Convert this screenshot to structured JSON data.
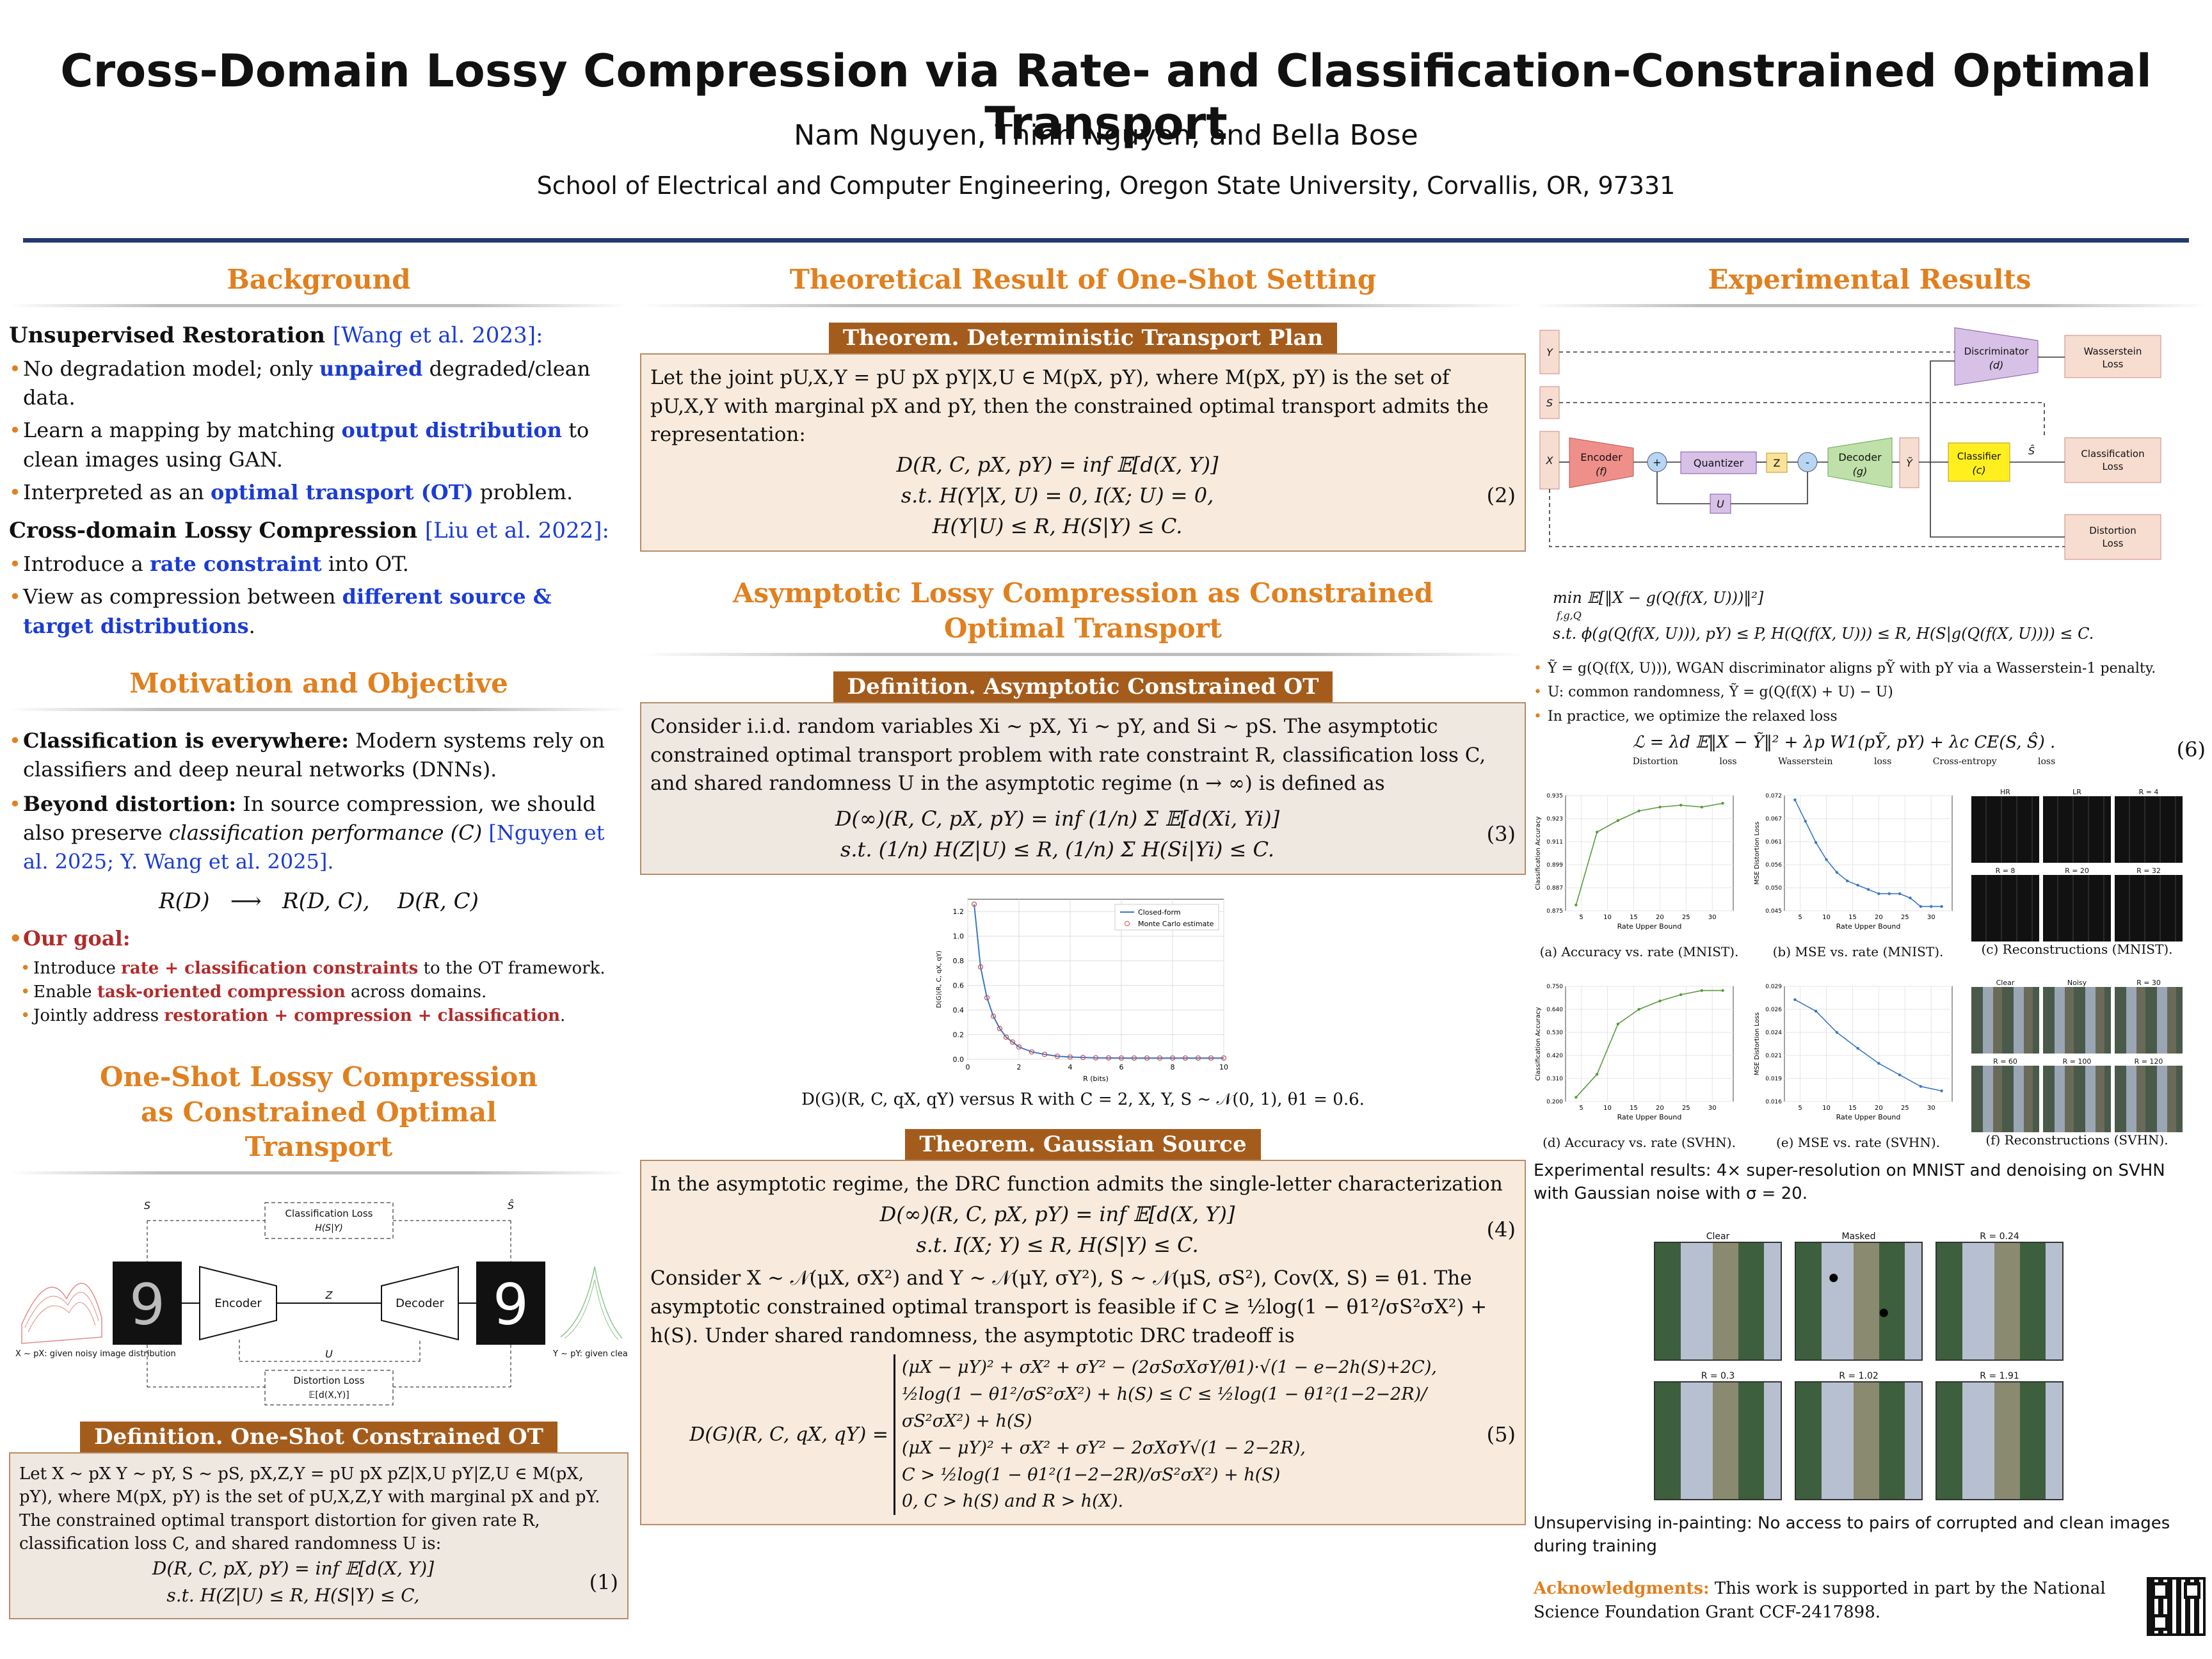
{
  "header": {
    "title": "Cross-Domain Lossy Compression via Rate- and Classification-Constrained Optimal Transport",
    "authors": "Nam Nguyen, Thinh Nguyen, and Bella Bose",
    "affiliation": "School of Electrical and Computer Engineering, Oregon State University, Corvallis, OR, 97331"
  },
  "background": {
    "title": "Background",
    "unsup_head": "Unsupervised Restoration",
    "unsup_cite": "[Wang et al. 2023]:",
    "b1_a": "No degradation model; only ",
    "b1_hl": "unpaired",
    "b1_b": " degraded/clean data.",
    "b2_a": "Learn a mapping by matching ",
    "b2_hl": "output distribution",
    "b2_b": " to clean images using GAN.",
    "b3_a": "Interpreted as an ",
    "b3_hl": "optimal transport (OT)",
    "b3_b": " problem.",
    "cross_head": "Cross-domain Lossy Compression",
    "cross_cite": "[Liu et al. 2022]:",
    "b4_a": "Introduce a ",
    "b4_hl": "rate constraint",
    "b4_b": " into OT.",
    "b5_a": "View as compression between ",
    "b5_hl": "different source & target distributions",
    "b5_b": "."
  },
  "motivation": {
    "title": "Motivation and Objective",
    "m1_head": "Classification is everywhere:",
    "m1_body": " Modern systems rely on classifiers and deep neural networks (DNNs).",
    "m2_head": "Beyond distortion:",
    "m2_body_a": " In source compression, we should also preserve ",
    "m2_em": "classification performance (C)",
    "m2_cite": " [Nguyen et al. 2025; Y. Wang et al. 2025].",
    "formula": "R(D)   ⟶   R(D, C),    D(R, C)",
    "goal_head": "Our goal:",
    "g1_a": "Introduce ",
    "g1_hl": "rate + classification constraints",
    "g1_b": " to the OT framework.",
    "g2_a": "Enable ",
    "g2_hl": "task-oriented compression",
    "g2_b": " across domains.",
    "g3_a": "Jointly address ",
    "g3_hl": "restoration + compression + classification",
    "g3_b": "."
  },
  "oneshot": {
    "title": "One-Shot Lossy Compression as Constrained Optimal Transport",
    "diagram": {
      "s": "S",
      "s_hat": "Ŝ",
      "class_loss": "Classification Loss",
      "class_loss_sub": "H(S|Y)",
      "encoder": "Encoder",
      "decoder": "Decoder",
      "z": "Z",
      "u": "U",
      "dist_loss": "Distortion Loss",
      "dist_loss_sub": "𝔼[d(X,Y)]",
      "x_caption": "X ∼ pX: given noisy image distribution",
      "y_caption": "Y ∼ pY: given clean image distribution",
      "digit": "9"
    },
    "def_label": "Definition. One-Shot Constrained OT",
    "def_text": "Let X ∼ pX Y ∼ pY, S ∼ pS, pX,Z,Y = pU pX pZ|X,U pY|Z,U ∈ M(pX, pY), where M(pX, pY) is the set of pU,X,Z,Y with marginal pX and pY. The constrained optimal transport distortion for given rate R, classification loss C, and shared randomness U is:",
    "eq1": "D(R, C, pX, pY) = inf 𝔼[d(X, Y)]",
    "eq1_sub": "s.t.   H(Z|U) ≤ R,    H(S|Y) ≤ C,",
    "eq1_num": "(1)"
  },
  "theory": {
    "title": "Theoretical Result of One-Shot Setting",
    "thm1_label": "Theorem. Deterministic Transport Plan",
    "thm1_text": "Let the joint pU,X,Y = pU pX pY|X,U ∈ M(pX, pY), where M(pX, pY) is the set of pU,X,Y with marginal pX and pY, then the constrained optimal transport admits the representation:",
    "eq2": "D(R, C, pX, pY) =   inf   𝔼[d(X, Y)]",
    "eq2_c1": "s.t.   H(Y|X, U) = 0,    I(X; U) = 0,",
    "eq2_c2": "H(Y|U) ≤ R,    H(S|Y) ≤ C.",
    "eq2_num": "(2)"
  },
  "asymptotic": {
    "title": "Asymptotic Lossy Compression as Constrained Optimal Transport",
    "def_label": "Definition. Asymptotic Constrained OT",
    "def_text": "Consider i.i.d. random variables Xi ∼ pX, Yi ∼ pY, and Si ∼ pS. The asymptotic constrained optimal transport problem with rate constraint R, classification loss C, and shared randomness U in the asymptotic regime (n → ∞) is defined as",
    "eq3": "D(∞)(R, C, pX, pY) = inf (1/n) Σ 𝔼[d(Xi, Yi)]",
    "eq3_c": "s.t.   (1/n) H(Z|U) ≤ R,    (1/n) Σ H(Si|Yi) ≤ C.",
    "eq3_num": "(3)",
    "chart_caption": "D(G)(R, C, qX, qY) versus R with C = 2, X, Y, S ∼ 𝒩(0, 1), θ1 = 0.6."
  },
  "gaussian": {
    "label": "Theorem. Gaussian Source",
    "text1": "In the asymptotic regime, the DRC function admits the single-letter characterization",
    "eq4": "D(∞)(R, C, pX, pY) =   inf   𝔼[d(X, Y)]",
    "eq4_c": "s.t.   I(X; Y) ≤ R,    H(S|Y) ≤ C.",
    "eq4_num": "(4)",
    "text2": "Consider X ∼ 𝒩(μX, σX²) and Y ∼ 𝒩(μY, σY²), S ∼ 𝒩(μS, σS²), Cov(X, S) = θ1. The asymptotic constrained optimal transport is feasible if C ≥ ½log(1 − θ1²/σS²σX²) + h(S). Under shared randomness, the asymptotic DRC tradeoff is",
    "eq5_lhs": "D(G)(R, C, qX, qY) =",
    "eq5_r1": "(μX − μY)² + σX² + σY² − (2σSσXσY/θ1)·√(1 − e−2h(S)+2C),",
    "eq5_r2": "½log(1 − θ1²/σS²σX²) + h(S) ≤ C ≤ ½log(1 − θ1²(1−2−2R)/σS²σX²) + h(S)",
    "eq5_r3": "(μX − μY)² + σX² + σY² − 2σXσY√(1 − 2−2R),",
    "eq5_r4": "C > ½log(1 − θ1²(1−2−2R)/σS²σX²) + h(S)",
    "eq5_r5": "0, C > h(S)  and  R > h(X).",
    "eq5_num": "(5)"
  },
  "experiments": {
    "title": "Experimental Results",
    "flow": {
      "y": "Y",
      "s": "S",
      "x": "X",
      "discriminator": "Discriminator",
      "disc_sub": "(d)",
      "wasserstein": "Wasserstein Loss",
      "encoder": "Encoder",
      "encoder_sub": "(f)",
      "quantizer": "Quantizer",
      "z": "Z",
      "u": "U",
      "decoder": "Decoder",
      "decoder_sub": "(g)",
      "y_tilde": "Ỹ",
      "classifier": "Classifier",
      "classifier_sub": "(c)",
      "s_hat": "Ŝ",
      "class_loss": "Classification Loss",
      "dist_loss": "Distortion Loss",
      "plus": "+",
      "minus": "-"
    },
    "opt_obj": "min  𝔼[‖X − g(Q(f(X, U)))‖²]",
    "opt_sub": "f,g,Q",
    "opt_st": "s.t.   ϕ(g(Q(f(X, U))), pY) ≤ P,    H(Q(f(X, U))) ≤ R,    H(S|g(Q(f(X, U)))) ≤ C.",
    "e1": "Ỹ = g(Q(f(X, U))), WGAN discriminator aligns pỸ with pY via a Wasserstein-1 penalty.",
    "e2": "U: common randomness, Ỹ = g(Q(f(X) + U) − U)",
    "e3": "In practice, we optimize the relaxed loss",
    "eq6": "ℒ = λd 𝔼‖X − Ỹ‖² + λp W1(pỸ, pY) + λc CE(S, Ŝ) .",
    "eq6_l1": "Distortion loss",
    "eq6_l2": "Wasserstein loss",
    "eq6_l3": "Cross-entropy loss",
    "eq6_num": "(6)",
    "cap_a": "(a) Accuracy vs. rate (MNIST).",
    "cap_b": "(b) MSE vs. rate (MNIST).",
    "cap_c": "(c) Reconstructions (MNIST).",
    "cap_d": "(d) Accuracy vs. rate (SVHN).",
    "cap_e": "(e) MSE vs. rate (SVHN).",
    "cap_f": "(f) Reconstructions (SVHN).",
    "ylab_acc": "Classification Accuracy",
    "ylab_mse": "MSE Distortion Loss",
    "xlab": "Rate Upper Bound",
    "recon_labels_mnist": [
      "HR",
      "LR",
      "R = 4",
      "R = 8",
      "R = 20",
      "R = 32"
    ],
    "recon_labels_svhn": [
      "Clear",
      "Noisy",
      "R = 30",
      "R = 60",
      "R = 100",
      "R = 120"
    ],
    "exp_caption": "Experimental results: 4× super-resolution on MNIST and denoising on SVHN with Gaussian noise with σ = 20.",
    "inpaint_labels": [
      "Clear",
      "Masked",
      "R = 0.24",
      "R = 0.3",
      "R = 1.02",
      "R = 1.91"
    ],
    "inpaint_caption": "Unsupervising in-painting: No access to pairs of corrupted and clean images during training",
    "ack_head": "Acknowledgments:",
    "ack_body": " This work is supported in part by the National Science Foundation Grant CCF-2417898."
  },
  "chart_data": [
    {
      "type": "line",
      "title": "",
      "xlabel": "R (bits)",
      "ylabel": "D(G)(R, C, qX, qY)",
      "xlim": [
        0,
        10
      ],
      "ylim": [
        0,
        1.3
      ],
      "x_ticks": [
        0,
        2,
        4,
        6,
        8,
        10
      ],
      "y_ticks": [
        0.0,
        0.2,
        0.4,
        0.6,
        0.8,
        1.0,
        1.2
      ],
      "legend": "top-right",
      "series": [
        {
          "name": "Closed-form",
          "x": [
            0.25,
            0.5,
            0.75,
            1.0,
            1.25,
            1.5,
            1.75,
            2.0,
            2.5,
            3.0,
            3.5,
            4.0,
            5.0,
            6.0,
            8.0,
            10.0
          ],
          "values": [
            1.26,
            0.75,
            0.5,
            0.35,
            0.25,
            0.18,
            0.14,
            0.1,
            0.06,
            0.04,
            0.025,
            0.018,
            0.012,
            0.01,
            0.01,
            0.01
          ]
        },
        {
          "name": "Monte Carlo estimate",
          "x": [
            0.25,
            0.5,
            0.75,
            1.0,
            1.25,
            1.5,
            1.75,
            2.0,
            2.5,
            3.0,
            3.5,
            4.0,
            4.5,
            5.0,
            5.5,
            6.0,
            6.5,
            7.0,
            7.5,
            8.0,
            8.5,
            9.0,
            9.5,
            10.0
          ],
          "values": [
            1.26,
            0.75,
            0.5,
            0.35,
            0.25,
            0.18,
            0.14,
            0.1,
            0.06,
            0.04,
            0.025,
            0.018,
            0.015,
            0.012,
            0.011,
            0.01,
            0.01,
            0.01,
            0.01,
            0.01,
            0.01,
            0.01,
            0.01,
            0.01
          ]
        }
      ]
    },
    {
      "type": "line",
      "title": "(a) Accuracy vs. rate (MNIST).",
      "xlabel": "Rate Upper Bound",
      "ylabel": "Classification Accuracy",
      "x": [
        4,
        8,
        12,
        16,
        20,
        24,
        28,
        32
      ],
      "values": [
        0.878,
        0.916,
        0.922,
        0.927,
        0.929,
        0.93,
        0.929,
        0.931
      ],
      "ylim": [
        0.875,
        0.935
      ]
    },
    {
      "type": "line",
      "title": "(b) MSE vs. rate (MNIST).",
      "xlabel": "Rate Upper Bound",
      "ylabel": "MSE Distortion Loss",
      "x": [
        4,
        6,
        8,
        10,
        12,
        14,
        16,
        18,
        20,
        22,
        24,
        26,
        28,
        30,
        32
      ],
      "values": [
        0.071,
        0.066,
        0.061,
        0.057,
        0.054,
        0.052,
        0.051,
        0.05,
        0.049,
        0.049,
        0.049,
        0.048,
        0.046,
        0.046,
        0.046
      ],
      "ylim": [
        0.045,
        0.072
      ]
    },
    {
      "type": "line",
      "title": "(d) Accuracy vs. rate (SVHN).",
      "xlabel": "Rate Upper Bound",
      "ylabel": "Classification Accuracy",
      "x": [
        4,
        8,
        12,
        16,
        20,
        24,
        28,
        32
      ],
      "values": [
        0.22,
        0.33,
        0.57,
        0.64,
        0.68,
        0.71,
        0.73,
        0.73
      ],
      "ylim": [
        0.2,
        0.75
      ]
    },
    {
      "type": "line",
      "title": "(e) MSE vs. rate (SVHN).",
      "xlabel": "Rate Upper Bound",
      "ylabel": "MSE Distortion Loss",
      "x": [
        4,
        8,
        12,
        16,
        20,
        24,
        28,
        32
      ],
      "values": [
        0.0275,
        0.0262,
        0.0238,
        0.022,
        0.0203,
        0.019,
        0.0177,
        0.0172
      ],
      "ylim": [
        0.016,
        0.029
      ]
    }
  ]
}
